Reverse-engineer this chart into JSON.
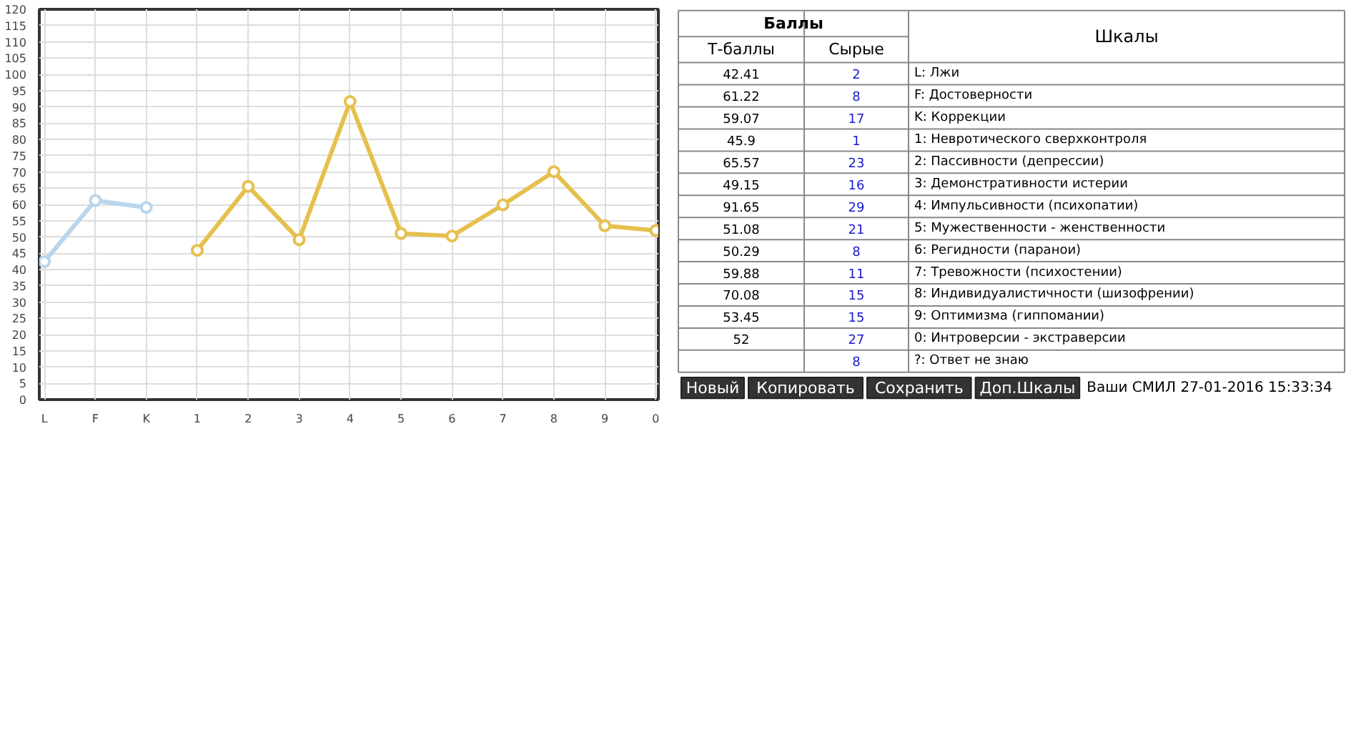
{
  "chart_data": [
    {
      "type": "line",
      "categories": [
        "L",
        "F",
        "K",
        "1",
        "2",
        "3",
        "4",
        "5",
        "6",
        "7",
        "8",
        "9",
        "0"
      ],
      "series": [
        {
          "color": "#b9d5ec",
          "values": [
            42.41,
            61.22,
            59.07,
            null,
            null,
            null,
            null,
            null,
            null,
            null,
            null,
            null,
            null
          ]
        },
        {
          "color": "#e6c04e",
          "values": [
            null,
            null,
            null,
            45.9,
            65.57,
            49.15,
            91.65,
            51.08,
            50.29,
            59.88,
            70.08,
            53.45,
            52
          ]
        }
      ],
      "ylim": [
        0,
        120
      ],
      "yticks": [
        0,
        5,
        10,
        15,
        20,
        25,
        30,
        35,
        40,
        45,
        50,
        55,
        60,
        65,
        70,
        75,
        80,
        85,
        90,
        95,
        100,
        105,
        110,
        115,
        120
      ],
      "grid": true,
      "marker": "circle",
      "line_style": "solid"
    },
    {
      "type": "heatmap",
      "data_labels": true,
      "title": "Баллы",
      "categories": [
        "Т-баллы",
        "Сырые"
      ],
      "ylabel": "Шкалы",
      "y_categories": [
        "L: Лжи",
        "F: Достоверности",
        "K: Коррекции",
        "1: Невротического сверхконтроля",
        "2: Пассивности (депрессии)",
        "3: Демонстративности истерии",
        "4: Импульсивности (психопатии)",
        "5: Мужественности - женственности",
        "6: Регидности (паранои)",
        "7: Тревожности (психостении)",
        "8: Индивидуалистичности (шизофрении)",
        "9: Оптимизма (гиппомании)",
        "0: Интроверсии - экстраверсии",
        "?: Ответ не знаю"
      ],
      "cells": [
        [
          42.41,
          2
        ],
        [
          61.22,
          8
        ],
        [
          59.07,
          17
        ],
        [
          45.9,
          1
        ],
        [
          65.57,
          23
        ],
        [
          49.15,
          16
        ],
        [
          91.65,
          29
        ],
        [
          51.08,
          21
        ],
        [
          50.29,
          8
        ],
        [
          59.88,
          11
        ],
        [
          70.08,
          15
        ],
        [
          53.45,
          15
        ],
        [
          52,
          27
        ],
        [
          null,
          8
        ]
      ],
      "annotations": [
        "Новый",
        "Копировать",
        "Сохранить",
        "Доп.Шкалы",
        "Ваши СМИЛ 27-01-2016 15:33:34"
      ]
    }
  ]
}
